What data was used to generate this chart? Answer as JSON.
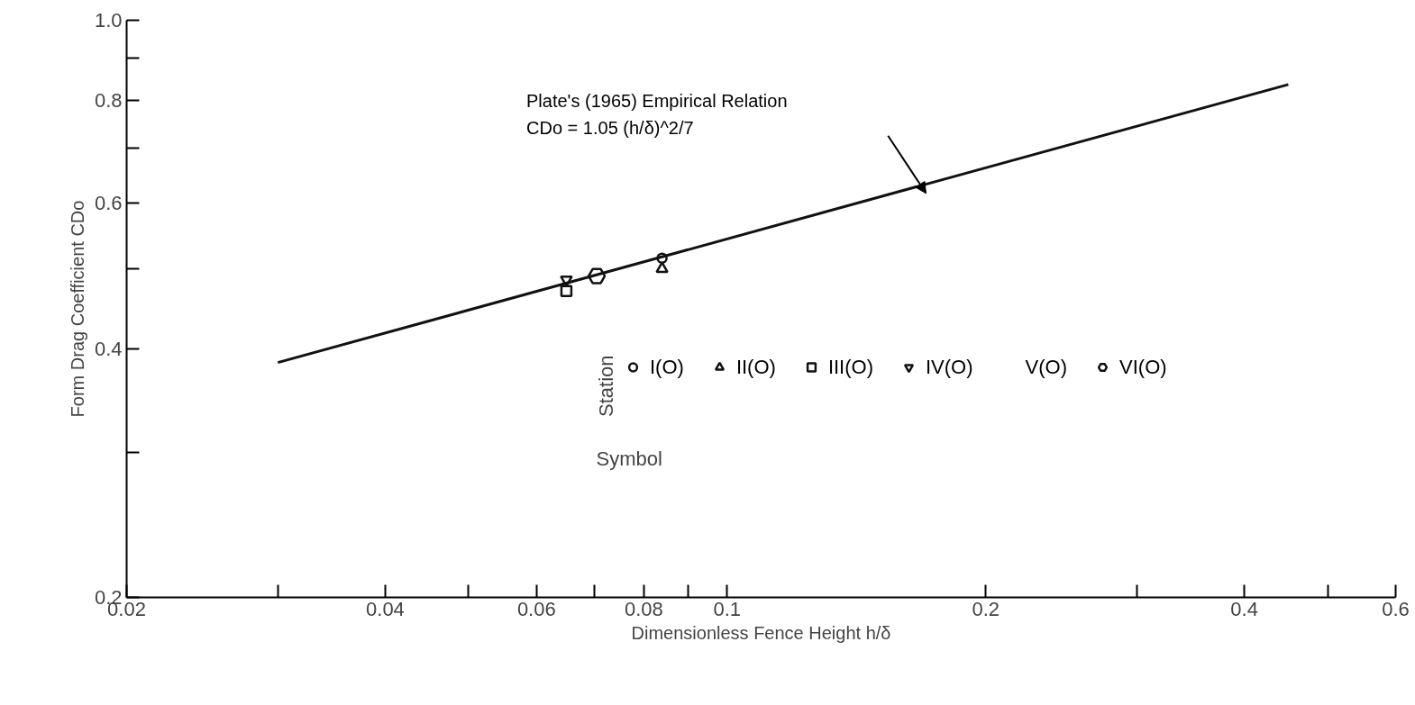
{
  "chart_data": {
    "type": "scatter",
    "xlabel": "Dimensionless Fence Height h/δ",
    "ylabel": "Form Drag Coefficient CDo",
    "log": "xy",
    "xlim": [
      0.02,
      0.6
    ],
    "ylim": [
      0.2,
      1.0
    ],
    "xticks": [
      0.02,
      {
        "value": 0.03,
        "label": null
      },
      0.04,
      {
        "value": 0.05,
        "label": null
      },
      0.06,
      {
        "value": 0.07,
        "label": null
      },
      0.08,
      {
        "value": 0.09,
        "label": null
      },
      0.1,
      0.2,
      {
        "value": 0.3,
        "label": null
      },
      0.4,
      {
        "value": 0.5,
        "label": null
      },
      0.6
    ],
    "yticks": [
      0.2,
      {
        "value": 0.3,
        "label": null
      },
      0.4,
      {
        "value": 0.5,
        "label": null
      },
      0.6,
      {
        "value": 0.7,
        "label": null
      },
      0.8,
      {
        "value": 0.9,
        "label": null
      },
      {
        "value": 1.0,
        "label": "1.0"
      }
    ],
    "grid": false,
    "legend": "right",
    "legend_title": "Station",
    "series": [
      {
        "type": "line",
        "color": "#111111",
        "x": [
          0.03,
          0.45
        ],
        "values": [
          0.385,
          0.836
        ],
        "marker": "none"
      },
      {
        "name": "I(O)",
        "color": "#111111",
        "marker": "circle",
        "x": [
          0.084
        ],
        "values": [
          0.515
        ]
      },
      {
        "name": "II(O)",
        "color": "#111111",
        "marker": "triangle",
        "x": [
          0.084
        ],
        "values": [
          0.5
        ]
      },
      {
        "name": "III(O)",
        "color": "#111111",
        "marker": "square",
        "x": [
          0.065
        ],
        "values": [
          0.47
        ]
      },
      {
        "name": "IV(O)",
        "color": "#111111",
        "x": [
          0.065
        ],
        "values": [
          0.485
        ]
      },
      {
        "name": "V(O)",
        "color": "#111111",
        "marker": "diamond"
      },
      {
        "name": "VI(O)",
        "color": "#111111",
        "x": [
          0.0705
        ],
        "values": [
          0.49
        ]
      }
    ],
    "annotations": [
      "Plate's (1965) Empirical Relation\nCDo = 1.05 (h/δ)^2/7",
      "Symbol"
    ]
  }
}
